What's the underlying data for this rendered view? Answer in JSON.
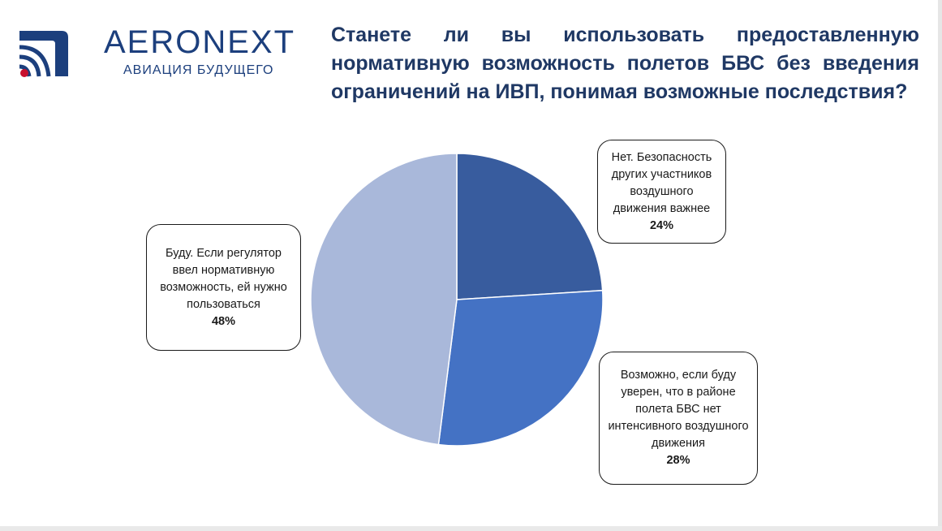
{
  "logo": {
    "brand": "AERONEXT",
    "tagline": "АВИАЦИЯ БУДУЩЕГО",
    "brand_color": "#1c3f7d",
    "accent_color": "#c8102e"
  },
  "chart_data": {
    "type": "pie",
    "title": "Станете ли вы использовать предоставленную нормативную возможность полетов БВС без введения ограничений на ИВП, понимая возможные последствия?",
    "slices": [
      {
        "label": "Нет. Безопасность других участников воздушного движения важнее",
        "value": 24,
        "value_label": "24%",
        "color": "#385c9e"
      },
      {
        "label": "Возможно, если буду уверен, что в районе полета БВС нет интенсивного воздушного движения",
        "value": 28,
        "value_label": "28%",
        "color": "#4472c4"
      },
      {
        "label": "Буду. Если регулятор ввел нормативную возможность, ей нужно пользоваться",
        "value": 48,
        "value_label": "48%",
        "color": "#a9b8da"
      }
    ],
    "start_angle_deg": 0,
    "direction": "clockwise",
    "legend": "none",
    "data_labels": "callouts"
  }
}
